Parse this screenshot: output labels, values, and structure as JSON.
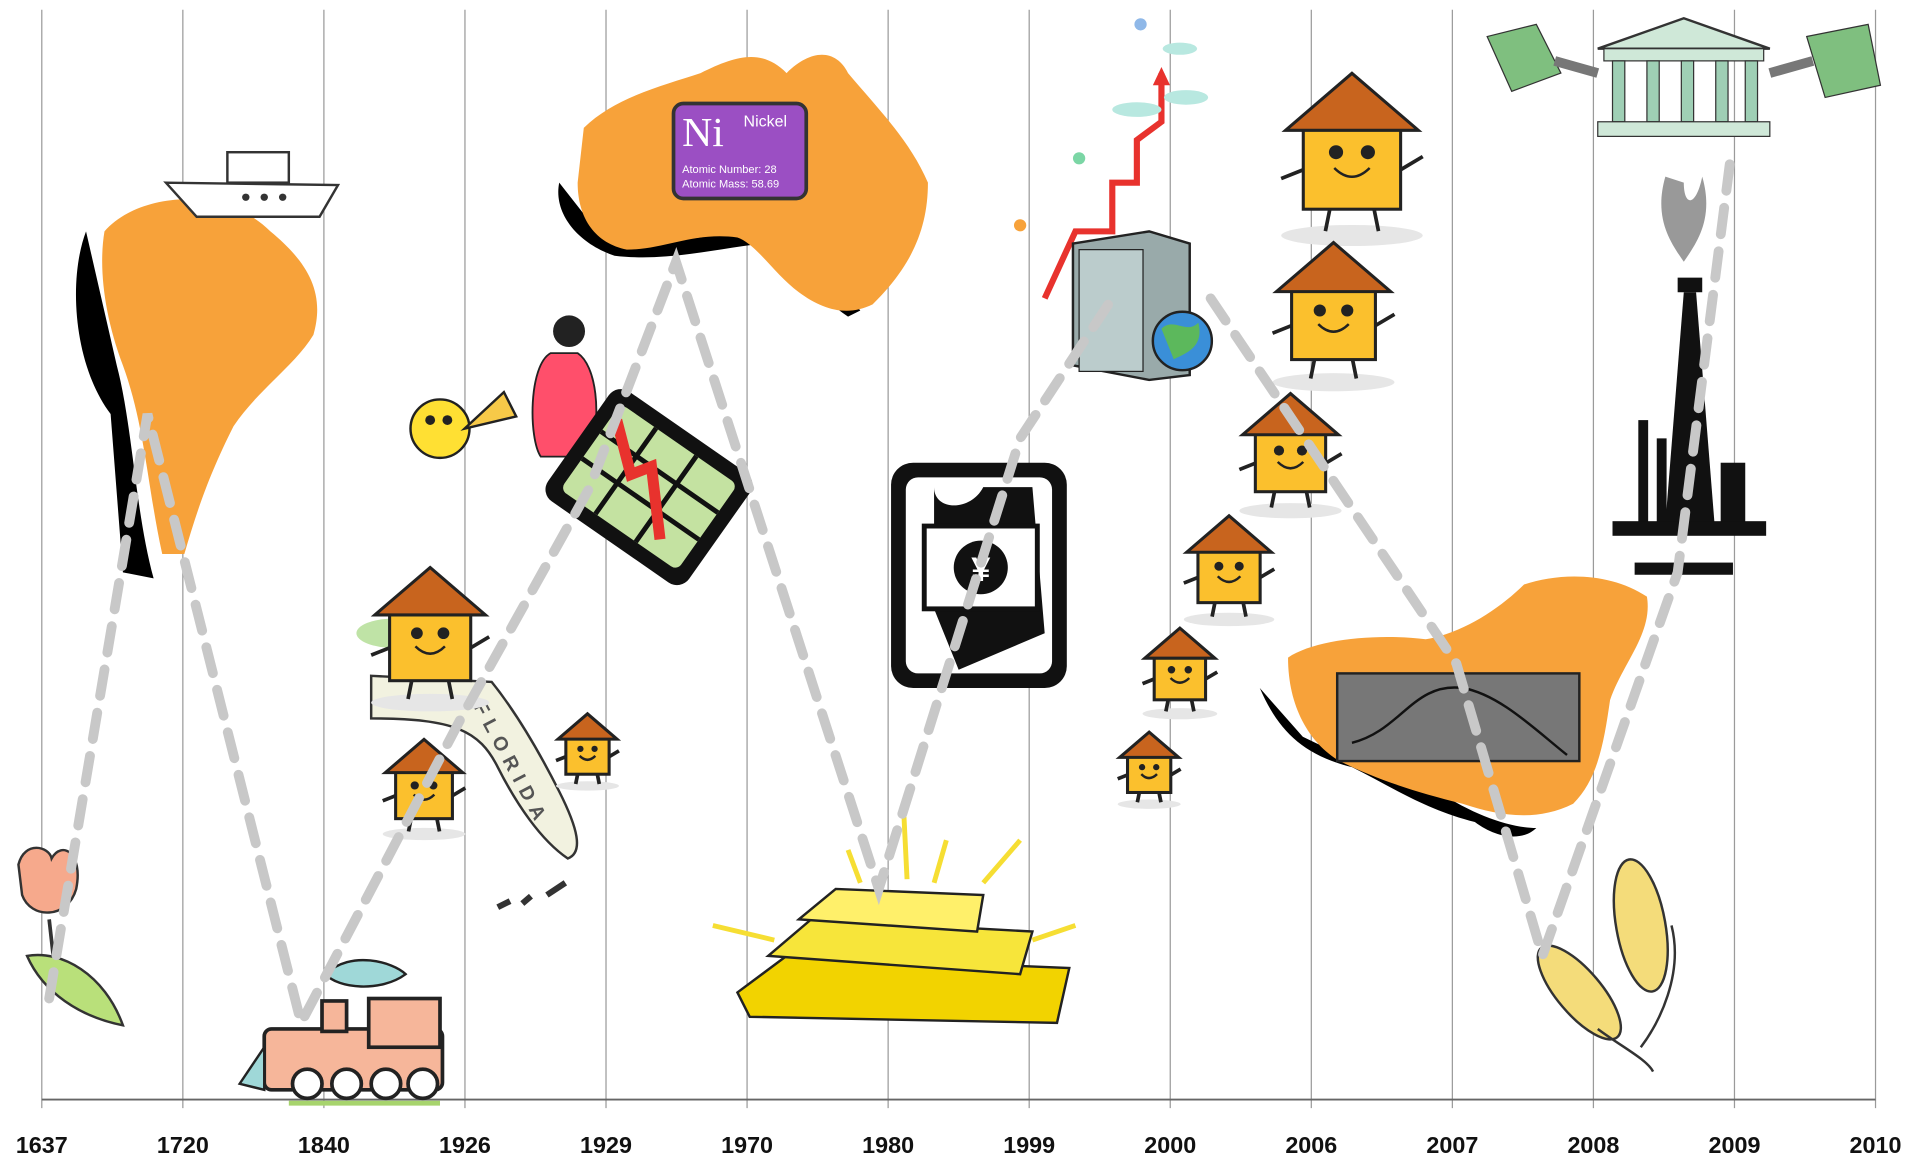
{
  "timeline": {
    "years": [
      "1637",
      "1720",
      "1840",
      "1926",
      "1929",
      "1970",
      "1980",
      "1999",
      "2000",
      "2006",
      "2007",
      "2008",
      "2009",
      "2010"
    ],
    "nickel": {
      "symbol": "Ni",
      "name": "Nickel",
      "number": "Atomic Number: 28",
      "mass": "Atomic Mass: 58.69"
    },
    "florida": "FLORIDA",
    "currency": "¥"
  }
}
